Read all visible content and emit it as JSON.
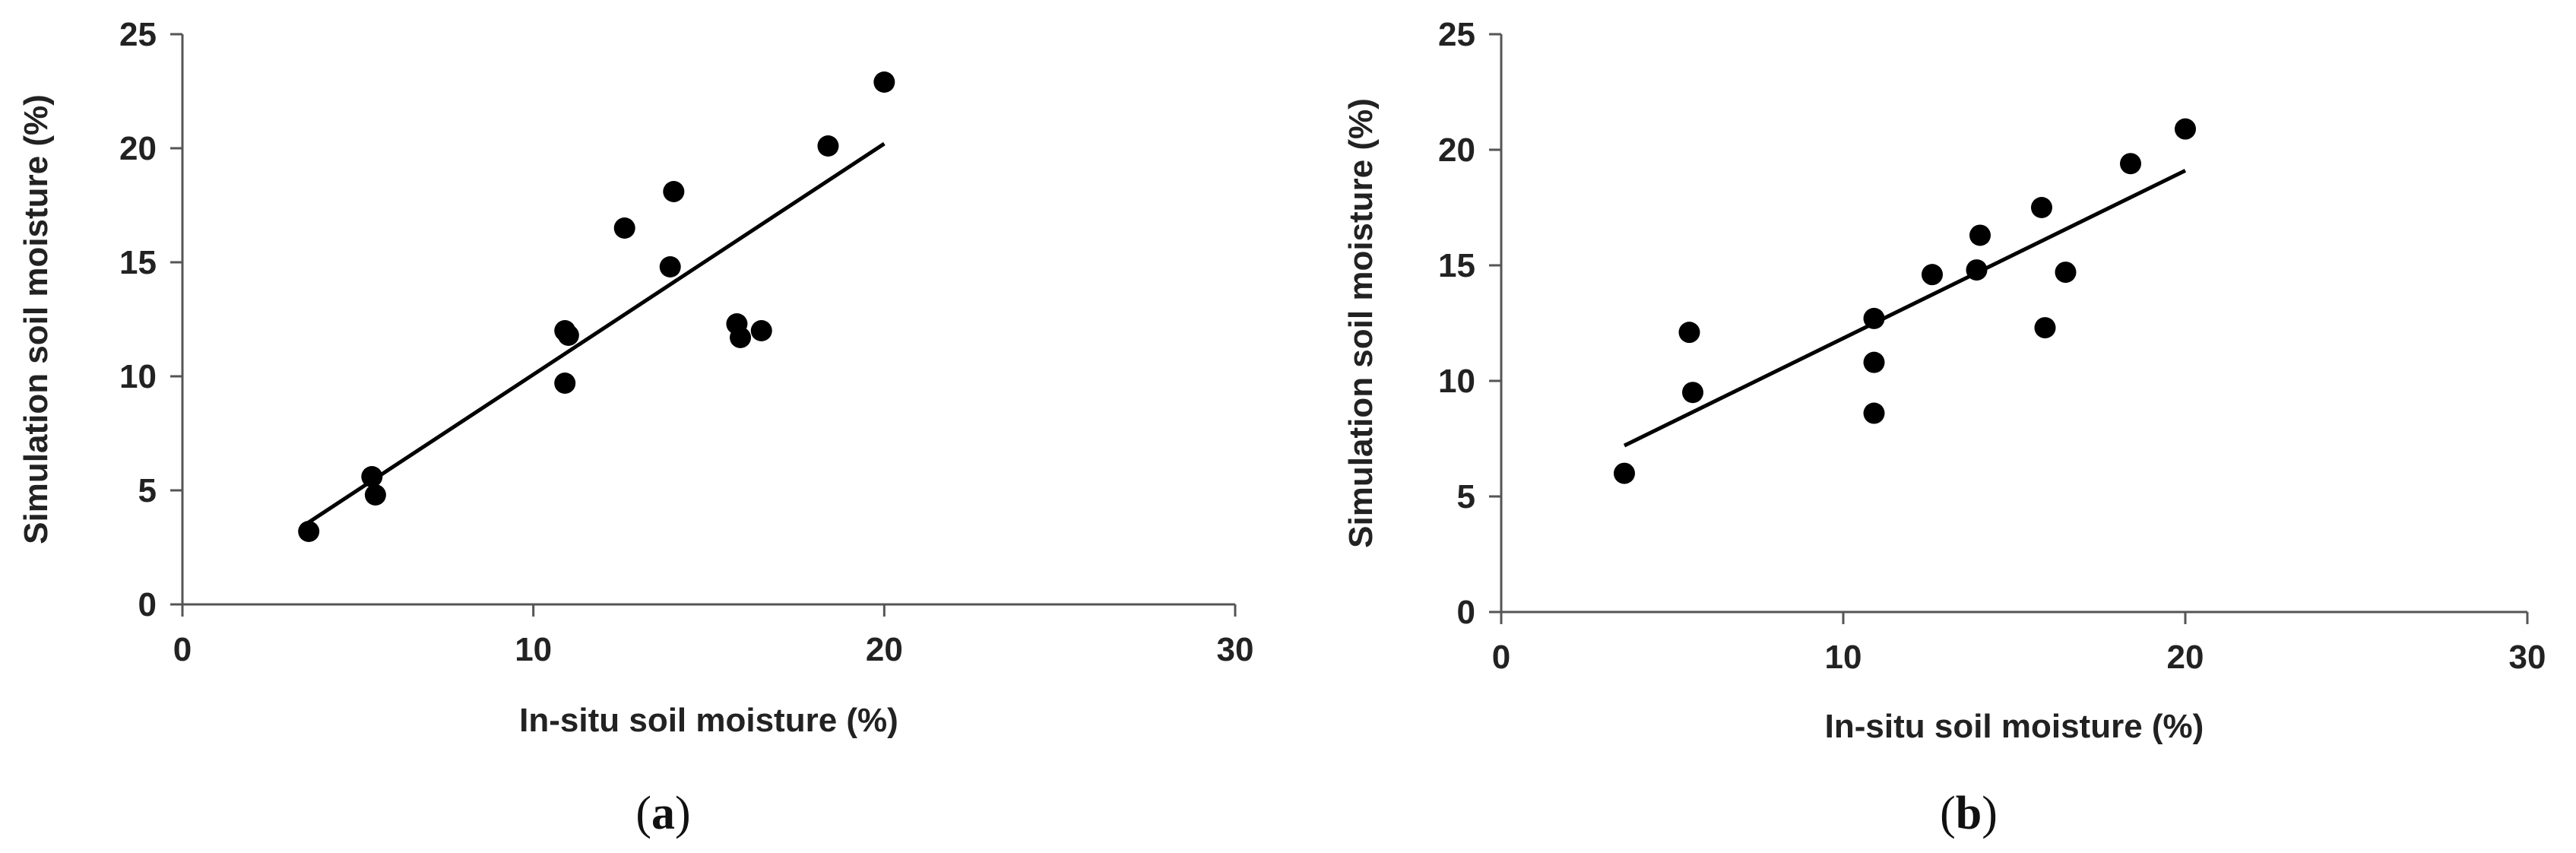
{
  "chart_data": [
    {
      "type": "scatter",
      "panel_label": "(a)",
      "panel_letter": "a",
      "xlabel": "In-situ soil moisture (%)",
      "ylabel": "Simulation soil moisture (%)",
      "xlim": [
        0,
        30
      ],
      "ylim": [
        0,
        25
      ],
      "xticks": [
        0,
        10,
        20,
        30
      ],
      "yticks": [
        0,
        5,
        10,
        15,
        20,
        25
      ],
      "grid": false,
      "legend": "none",
      "series": [
        {
          "x": [
            3.6,
            5.4,
            5.5,
            10.9,
            11.0,
            10.9,
            12.6,
            13.9,
            14.0,
            15.8,
            15.9,
            16.5,
            18.4,
            20.0
          ],
          "y": [
            3.2,
            5.6,
            4.8,
            9.7,
            11.8,
            12.0,
            16.5,
            14.8,
            18.1,
            12.3,
            11.7,
            12.0,
            20.1,
            22.9
          ]
        }
      ],
      "trendline": {
        "x": [
          3.6,
          20.0
        ],
        "y": [
          3.6,
          20.2
        ]
      }
    },
    {
      "type": "scatter",
      "panel_label": "(b)",
      "panel_letter": "b",
      "xlabel": "In-situ soil moisture (%)",
      "ylabel": "Simulation soil moisture (%)",
      "xlim": [
        0,
        30
      ],
      "ylim": [
        0,
        25
      ],
      "xticks": [
        0,
        10,
        20,
        30
      ],
      "yticks": [
        0,
        5,
        10,
        15,
        20,
        25
      ],
      "grid": false,
      "legend": "none",
      "series": [
        {
          "x": [
            3.6,
            5.5,
            5.6,
            10.9,
            10.9,
            10.9,
            12.6,
            13.9,
            14.0,
            15.8,
            15.9,
            16.5,
            18.4,
            20.0
          ],
          "y": [
            6.0,
            12.1,
            9.5,
            12.7,
            10.8,
            8.6,
            14.6,
            14.8,
            16.3,
            17.5,
            12.3,
            14.7,
            19.4,
            20.9
          ]
        }
      ],
      "trendline": {
        "x": [
          3.6,
          20.0
        ],
        "y": [
          7.2,
          19.1
        ]
      }
    }
  ]
}
